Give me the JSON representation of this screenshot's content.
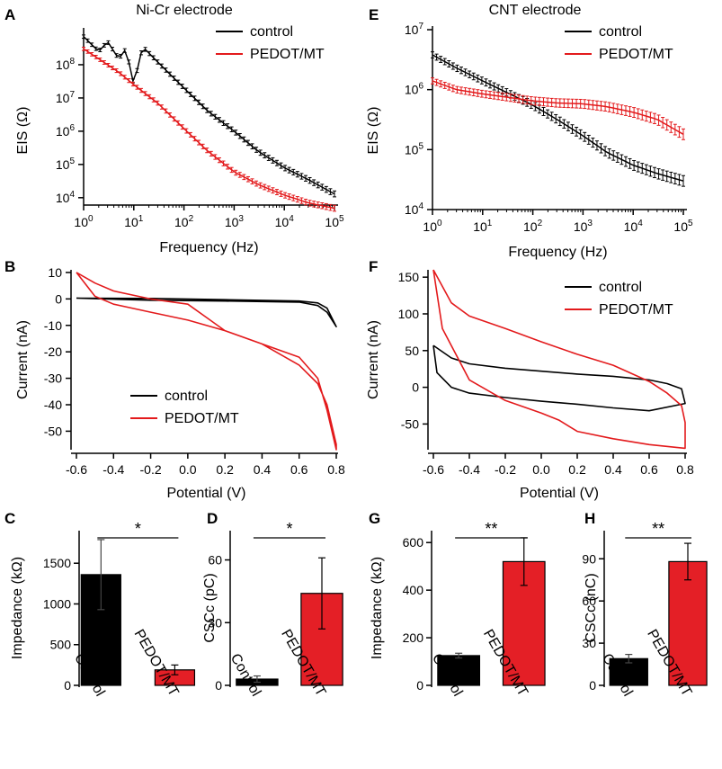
{
  "colors": {
    "control": "#000000",
    "pedot": "#e31a1c",
    "bar_control": "#000000",
    "bar_pedot": "#e41f26"
  },
  "chart_data": [
    {
      "panel": "A",
      "type": "line",
      "title": "Ni-Cr electrode",
      "xlabel": "Frequency (Hz)",
      "ylabel": "EIS (Ω)",
      "xscale": "log",
      "yscale": "log",
      "xlim": [
        1,
        100000
      ],
      "ylim": [
        6000,
        1000000000
      ],
      "xticks": [
        "10^0",
        "10^1",
        "10^2",
        "10^3",
        "10^4",
        "10^5"
      ],
      "yticks": [
        "10^4",
        "10^5",
        "10^6",
        "10^7",
        "10^8"
      ],
      "legend": [
        "control",
        "PEDOT/MT"
      ],
      "legend_position": "top-right",
      "series": [
        {
          "name": "control",
          "x": [
            1,
            2,
            3,
            5,
            7,
            10,
            15,
            30,
            100,
            300,
            1000,
            3000,
            10000,
            30000,
            100000
          ],
          "y": [
            700000000,
            250000000,
            500000000,
            150000000,
            300000000,
            25000000,
            350000000,
            120000000,
            20000000,
            4000000,
            1000000,
            250000,
            80000,
            35000,
            13000
          ]
        },
        {
          "name": "PEDOT/MT",
          "x": [
            1,
            2,
            3,
            5,
            10,
            30,
            100,
            300,
            1000,
            3000,
            10000,
            30000,
            100000
          ],
          "y": [
            300000000,
            150000000,
            100000000,
            60000000,
            25000000,
            7000000,
            1200000,
            250000,
            60000,
            25000,
            12000,
            7000,
            4800
          ]
        }
      ]
    },
    {
      "panel": "E",
      "type": "line",
      "title": "CNT electrode",
      "xlabel": "Frequency (Hz)",
      "ylabel": "EIS (Ω)",
      "xscale": "log",
      "yscale": "log",
      "xlim": [
        1,
        100000
      ],
      "ylim": [
        10000,
        10000000
      ],
      "xticks": [
        "10^0",
        "10^1",
        "10^2",
        "10^3",
        "10^4",
        "10^5"
      ],
      "yticks": [
        "10^4",
        "10^5",
        "10^6",
        "10^7"
      ],
      "legend": [
        "control",
        "PEDOT/MT"
      ],
      "legend_position": "top-right",
      "series": [
        {
          "name": "control",
          "x": [
            1,
            3,
            10,
            30,
            100,
            300,
            1000,
            3000,
            10000,
            30000,
            100000
          ],
          "y": [
            3800000,
            2300000,
            1400000,
            900000,
            550000,
            320000,
            170000,
            90000,
            55000,
            40000,
            30000
          ]
        },
        {
          "name": "PEDOT/MT",
          "x": [
            1,
            3,
            10,
            30,
            100,
            300,
            1000,
            3000,
            10000,
            30000,
            100000
          ],
          "y": [
            1400000,
            1000000,
            850000,
            750000,
            650000,
            600000,
            580000,
            520000,
            420000,
            320000,
            180000
          ]
        }
      ]
    },
    {
      "panel": "B",
      "type": "line",
      "title": "",
      "xlabel": "Potential (V)",
      "ylabel": "Current (nA)",
      "xlim": [
        -0.6,
        0.8
      ],
      "ylim": [
        -57,
        11
      ],
      "xticks": [
        "-0.6",
        "-0.4",
        "-0.2",
        "0.0",
        "0.2",
        "0.4",
        "0.6",
        "0.8"
      ],
      "yticks": [
        "10",
        "0",
        "-10",
        "-20",
        "-30",
        "-40",
        "-50"
      ],
      "legend": [
        "control",
        "PEDOT/MT"
      ],
      "legend_position": "bottom-center",
      "series": [
        {
          "name": "control",
          "x": [
            -0.6,
            -0.2,
            0.2,
            0.6,
            0.7,
            0.75,
            0.8,
            0.8,
            0.75,
            0.7,
            0.6,
            0.2,
            -0.2,
            -0.6
          ],
          "y": [
            0.3,
            0.2,
            -0.3,
            -0.8,
            -1.5,
            -3.5,
            -10.5,
            -10.5,
            -5,
            -2.5,
            -1.2,
            -0.8,
            -0.5,
            0.3
          ]
        },
        {
          "name": "PEDOT/MT",
          "x": [
            -0.6,
            -0.5,
            -0.4,
            -0.2,
            0,
            0.2,
            0.4,
            0.6,
            0.7,
            0.75,
            0.8,
            0.8,
            0.75,
            0.7,
            0.6,
            0.4,
            0.2,
            0.1,
            0,
            -0.2,
            -0.4,
            -0.5,
            -0.6
          ],
          "y": [
            10,
            1,
            -2,
            -5,
            -8,
            -12,
            -17,
            -25,
            -32,
            -40,
            -55,
            -57,
            -42,
            -30,
            -22,
            -17,
            -12,
            -7,
            -2,
            0,
            3,
            6,
            10
          ]
        }
      ]
    },
    {
      "panel": "F",
      "type": "line",
      "title": "",
      "xlabel": "Potential (V)",
      "ylabel": "Current (nA)",
      "xlim": [
        -0.6,
        0.8
      ],
      "ylim": [
        -85,
        160
      ],
      "xticks": [
        "-0.6",
        "-0.4",
        "-0.2",
        "0.0",
        "0.2",
        "0.4",
        "0.6",
        "0.8"
      ],
      "yticks": [
        "150",
        "100",
        "50",
        "0",
        "-50"
      ],
      "legend": [
        "control",
        "PEDOT/MT"
      ],
      "legend_position": "top-right",
      "series": [
        {
          "name": "control",
          "x": [
            -0.6,
            -0.5,
            -0.4,
            -0.2,
            0,
            0.2,
            0.4,
            0.6,
            0.7,
            0.78,
            0.8,
            0.6,
            0.4,
            0.2,
            0,
            -0.2,
            -0.4,
            -0.5,
            -0.58,
            -0.6
          ],
          "y": [
            57,
            40,
            32,
            26,
            22,
            18,
            15,
            10,
            5,
            -2,
            -22,
            -32,
            -28,
            -23,
            -19,
            -14,
            -8,
            0,
            20,
            57
          ]
        },
        {
          "name": "PEDOT/MT",
          "x": [
            -0.6,
            -0.5,
            -0.4,
            -0.2,
            0,
            0.2,
            0.4,
            0.6,
            0.7,
            0.78,
            0.8,
            0.8,
            0.6,
            0.4,
            0.2,
            0.1,
            0,
            -0.2,
            -0.4,
            -0.55,
            -0.6
          ],
          "y": [
            160,
            115,
            97,
            80,
            62,
            45,
            30,
            8,
            -8,
            -25,
            -48,
            -83,
            -78,
            -70,
            -60,
            -45,
            -35,
            -18,
            10,
            80,
            160
          ]
        }
      ]
    },
    {
      "panel": "C",
      "type": "bar",
      "categories": [
        "Control",
        "PEDOT/MT"
      ],
      "values": [
        1360,
        190
      ],
      "errors": [
        430,
        60
      ],
      "ylabel": "Impedance (kΩ)",
      "ylim": [
        0,
        1900
      ],
      "yticks": [
        "0",
        "500",
        "1000",
        "1500"
      ],
      "significance": "*"
    },
    {
      "panel": "D",
      "type": "bar",
      "categories": [
        "Control",
        "PEDOT/MT"
      ],
      "values": [
        3,
        44
      ],
      "errors": [
        1.5,
        17
      ],
      "ylabel": "CSCc (pC)",
      "ylim": [
        0,
        74
      ],
      "yticks": [
        "0",
        "30",
        "60"
      ],
      "significance": "*"
    },
    {
      "panel": "G",
      "type": "bar",
      "categories": [
        "Control",
        "PEDOT/MT"
      ],
      "values": [
        125,
        520
      ],
      "errors": [
        10,
        100
      ],
      "ylabel": "Impedance (kΩ)",
      "ylim": [
        0,
        650
      ],
      "yticks": [
        "0",
        "200",
        "400",
        "600"
      ],
      "significance": "**"
    },
    {
      "panel": "H",
      "type": "bar",
      "categories": [
        "Control",
        "PEDOT/MT"
      ],
      "values": [
        19,
        88
      ],
      "errors": [
        3,
        13
      ],
      "ylabel": "CSCc (nC)",
      "ylim": [
        0,
        110
      ],
      "yticks": [
        "0",
        "30",
        "60",
        "90"
      ],
      "significance": "**"
    }
  ]
}
